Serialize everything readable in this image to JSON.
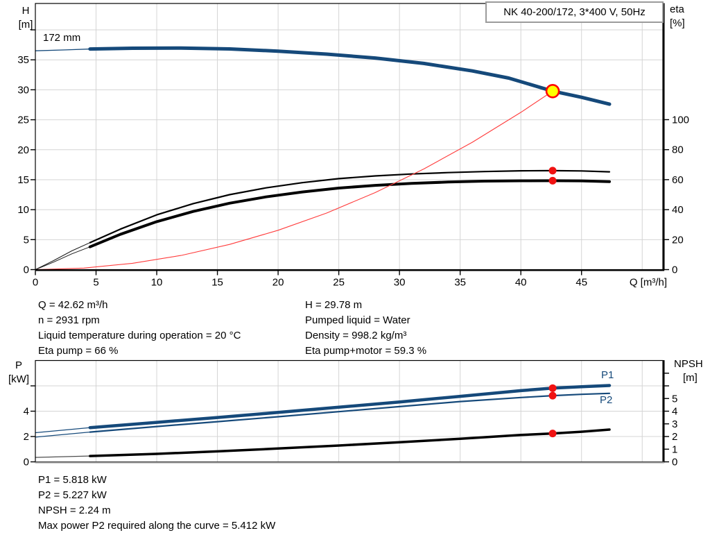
{
  "colors": {
    "curve_blue": "#15497a",
    "curve_black": "#000000",
    "system_red": "#ff3b3b",
    "dot_red": "#f01212",
    "duty_fill": "#ffff00",
    "duty_stroke": "#ff0000",
    "grid": "#d4d4d4",
    "frame": "#000000"
  },
  "chart_data": [
    {
      "type": "line",
      "title": "NK 40-200/172, 3*400 V, 50Hz",
      "impeller_label": "172 mm",
      "x_label": "Q [m³/h]",
      "left_label_top": "H",
      "left_label_bottom": "[m]",
      "right_label_top": "eta",
      "right_label_bottom": "[%]",
      "xlim": [
        0,
        51.7
      ],
      "ylim_left": [
        0,
        44.4
      ],
      "ylim_right": [
        0,
        177.5
      ],
      "x_ticks": [
        0,
        5,
        10,
        15,
        20,
        25,
        30,
        35,
        40,
        45
      ],
      "x_grid": [
        5,
        10,
        15,
        20,
        25,
        30,
        35,
        40,
        45,
        50
      ],
      "y_left_ticks": [
        0,
        5,
        10,
        15,
        20,
        25,
        30,
        35
      ],
      "y_left_ticks_unlabeled": [
        40
      ],
      "y_grid": [
        5,
        10,
        15,
        20,
        25,
        30,
        35,
        40
      ],
      "y_right_ticks": [
        0,
        20,
        40,
        60,
        80,
        100
      ],
      "y_right_ticks_unlabeled": [],
      "series": [
        {
          "name": "pump-curve-lead",
          "axis": "left",
          "color": "#15497a",
          "width": 1.3,
          "points": [
            [
              0,
              36.5
            ],
            [
              2.5,
              36.65
            ],
            [
              4.5,
              36.8
            ]
          ]
        },
        {
          "name": "pump-curve",
          "axis": "left",
          "color": "#15497a",
          "width": 5,
          "points": [
            [
              4.5,
              36.8
            ],
            [
              8,
              36.93
            ],
            [
              12,
              36.97
            ],
            [
              16,
              36.82
            ],
            [
              20,
              36.45
            ],
            [
              24,
              35.95
            ],
            [
              28,
              35.3
            ],
            [
              32,
              34.4
            ],
            [
              36,
              33.15
            ],
            [
              39,
              31.95
            ],
            [
              42.62,
              29.78
            ],
            [
              45,
              28.75
            ],
            [
              47.3,
              27.6
            ]
          ]
        },
        {
          "name": "eta-pump-curve-lead",
          "axis": "right",
          "color": "#1a1a1a",
          "width": 1,
          "points": [
            [
              0,
              0
            ],
            [
              1.5,
              6
            ],
            [
              3,
              12.5
            ],
            [
              4.5,
              18
            ]
          ]
        },
        {
          "name": "eta-pump-curve",
          "axis": "right",
          "color": "#000000",
          "width": 2.2,
          "points": [
            [
              4.5,
              18
            ],
            [
              7,
              27
            ],
            [
              10,
              36.5
            ],
            [
              13,
              44
            ],
            [
              16,
              50
            ],
            [
              19,
              54.5
            ],
            [
              22,
              58
            ],
            [
              25,
              60.7
            ],
            [
              28,
              62.5
            ],
            [
              31,
              63.8
            ],
            [
              34,
              64.7
            ],
            [
              37,
              65.4
            ],
            [
              40,
              65.9
            ],
            [
              42.62,
              66
            ],
            [
              45,
              65.8
            ],
            [
              47.3,
              65.2
            ]
          ]
        },
        {
          "name": "eta-pump-motor-curve-lead",
          "axis": "right",
          "color": "#1a1a1a",
          "width": 1,
          "points": [
            [
              0,
              0
            ],
            [
              1.5,
              5
            ],
            [
              3,
              10.5
            ],
            [
              4.5,
              15.2
            ]
          ]
        },
        {
          "name": "eta-pump-motor-curve",
          "axis": "right",
          "color": "#000000",
          "width": 4,
          "points": [
            [
              4.5,
              15.2
            ],
            [
              7,
              23.5
            ],
            [
              10,
              32
            ],
            [
              13,
              38.8
            ],
            [
              16,
              44.3
            ],
            [
              19,
              48.5
            ],
            [
              22,
              51.8
            ],
            [
              25,
              54.4
            ],
            [
              28,
              56.2
            ],
            [
              31,
              57.5
            ],
            [
              34,
              58.4
            ],
            [
              37,
              59
            ],
            [
              40,
              59.25
            ],
            [
              42.62,
              59.3
            ],
            [
              45,
              59.2
            ],
            [
              47.3,
              58.7
            ]
          ]
        },
        {
          "name": "system-curve",
          "axis": "left",
          "color": "#ff3b3b",
          "width": 1.1,
          "points": [
            [
              0,
              0
            ],
            [
              4,
              0.26
            ],
            [
              8,
              1.05
            ],
            [
              12,
              2.36
            ],
            [
              16,
              4.2
            ],
            [
              20,
              6.56
            ],
            [
              24,
              9.44
            ],
            [
              28,
              12.85
            ],
            [
              32,
              16.79
            ],
            [
              36,
              21.25
            ],
            [
              40,
              26.23
            ],
            [
              42.62,
              29.78
            ]
          ]
        }
      ],
      "markers": [
        {
          "name": "eta-pump-duty-dot",
          "q": 42.62,
          "v": 66,
          "axis": "right",
          "r": 5.5,
          "fill": "#f01212"
        },
        {
          "name": "eta-pump-motor-duty-dot",
          "q": 42.62,
          "v": 59.3,
          "axis": "right",
          "r": 5.5,
          "fill": "#f01212"
        },
        {
          "name": "duty-point",
          "q": 42.62,
          "v": 29.78,
          "axis": "left",
          "r": 9,
          "fill": "#ffff00",
          "stroke": "#ff0000",
          "sw": 2.6
        }
      ]
    },
    {
      "type": "line",
      "x_label": "",
      "left_label_top": "P",
      "left_label_bottom": "[kW]",
      "right_label_top": "NPSH",
      "right_label_bottom": "[m]",
      "p1_label": "P1",
      "p2_label": "P2",
      "xlim": [
        0,
        51.7
      ],
      "ylim_left": [
        0,
        8
      ],
      "ylim_right": [
        0,
        8
      ],
      "x_ticks": [],
      "x_grid": [
        5,
        10,
        15,
        20,
        25,
        30,
        35,
        40,
        45,
        50
      ],
      "y_left_ticks": [
        0,
        2,
        4
      ],
      "y_left_ticks_unlabeled": [
        6
      ],
      "y_grid": [
        2,
        4,
        6
      ],
      "y_right_ticks": [
        0,
        1,
        2,
        3,
        4,
        5
      ],
      "y_right_ticks_unlabeled": [
        6,
        7
      ],
      "series": [
        {
          "name": "p1-curve-lead",
          "axis": "left",
          "color": "#15497a",
          "width": 1.2,
          "points": [
            [
              0,
              2.3
            ],
            [
              4.5,
              2.7
            ]
          ]
        },
        {
          "name": "p1-curve",
          "axis": "left",
          "color": "#15497a",
          "width": 4.5,
          "points": [
            [
              4.5,
              2.7
            ],
            [
              10,
              3.12
            ],
            [
              15,
              3.5
            ],
            [
              20,
              3.9
            ],
            [
              25,
              4.31
            ],
            [
              30,
              4.73
            ],
            [
              35,
              5.17
            ],
            [
              40,
              5.62
            ],
            [
              42.62,
              5.818
            ],
            [
              45,
              5.93
            ],
            [
              47.3,
              6.03
            ]
          ]
        },
        {
          "name": "p2-curve-lead",
          "axis": "left",
          "color": "#15497a",
          "width": 1.2,
          "points": [
            [
              0,
              1.95
            ],
            [
              4.5,
              2.35
            ]
          ]
        },
        {
          "name": "p2-curve",
          "axis": "left",
          "color": "#15497a",
          "width": 2.2,
          "points": [
            [
              4.5,
              2.35
            ],
            [
              10,
              2.79
            ],
            [
              15,
              3.17
            ],
            [
              20,
              3.56
            ],
            [
              25,
              3.96
            ],
            [
              30,
              4.36
            ],
            [
              35,
              4.76
            ],
            [
              40,
              5.08
            ],
            [
              42.62,
              5.227
            ],
            [
              45,
              5.33
            ],
            [
              47.3,
              5.41
            ]
          ]
        },
        {
          "name": "npsh-curve-lead",
          "axis": "right",
          "color": "#4d4d4d",
          "width": 1.2,
          "points": [
            [
              0,
              0.35
            ],
            [
              4.5,
              0.46
            ]
          ]
        },
        {
          "name": "npsh-curve",
          "axis": "right",
          "color": "#000000",
          "width": 3.5,
          "points": [
            [
              4.5,
              0.46
            ],
            [
              10,
              0.63
            ],
            [
              15,
              0.83
            ],
            [
              20,
              1.05
            ],
            [
              25,
              1.29
            ],
            [
              30,
              1.55
            ],
            [
              35,
              1.82
            ],
            [
              40,
              2.12
            ],
            [
              42.62,
              2.24
            ],
            [
              45,
              2.38
            ],
            [
              47.3,
              2.55
            ]
          ]
        }
      ],
      "markers": [
        {
          "name": "p1-duty-dot",
          "q": 42.62,
          "v": 5.818,
          "axis": "left",
          "r": 5.5,
          "fill": "#f01212"
        },
        {
          "name": "p2-duty-dot",
          "q": 42.62,
          "v": 5.227,
          "axis": "left",
          "r": 5.5,
          "fill": "#f01212"
        },
        {
          "name": "npsh-duty-dot",
          "q": 42.62,
          "v": 2.24,
          "axis": "right",
          "r": 5.5,
          "fill": "#f01212"
        }
      ]
    }
  ],
  "info_top": {
    "left": [
      "Q = 42.62 m³/h",
      "n = 2931 rpm",
      "Liquid temperature during operation = 20 °C",
      "Eta pump = 66 %"
    ],
    "right": [
      "H = 29.78 m",
      "Pumped liquid = Water",
      "Density = 998.2 kg/m³",
      "Eta pump+motor = 59.3 %"
    ]
  },
  "info_bottom": {
    "lines": [
      "P1 = 5.818 kW",
      "P2 = 5.227 kW",
      "NPSH = 2.24 m",
      "Max power P2 required along the curve = 5.412 kW"
    ]
  }
}
